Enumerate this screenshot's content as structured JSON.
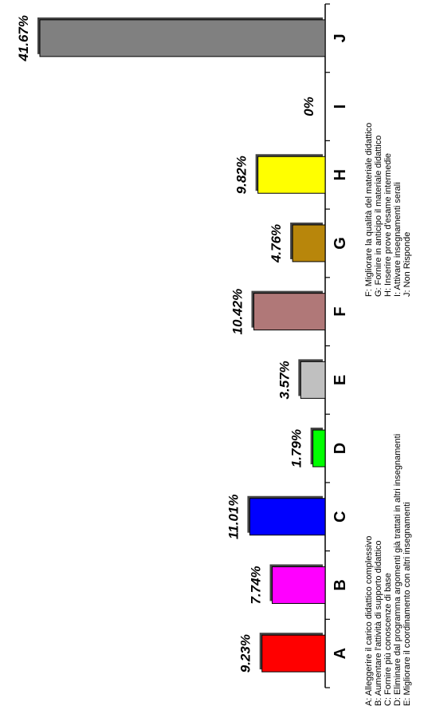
{
  "chart_data": {
    "type": "bar",
    "orientation": "horizontal-rotated",
    "categories": [
      "A",
      "B",
      "C",
      "D",
      "E",
      "F",
      "G",
      "H",
      "I",
      "J"
    ],
    "values": [
      9.23,
      7.74,
      11.01,
      1.79,
      3.57,
      10.42,
      4.76,
      9.82,
      0,
      41.67
    ],
    "value_labels": [
      "9.23%",
      "7.74%",
      "11.01%",
      "1.79%",
      "3.57%",
      "10.42%",
      "4.76%",
      "9.82%",
      "0%",
      "41.67%"
    ],
    "colors": [
      "#ff0000",
      "#ff00ff",
      "#0000ff",
      "#00ff00",
      "#c0c0c0",
      "#b07878",
      "#b8860b",
      "#ffff00",
      "#ffffff",
      "#808080"
    ],
    "title": "",
    "xlabel": "",
    "ylabel": "",
    "ylim": [
      0,
      45
    ],
    "grid": false,
    "legend_position": "right"
  },
  "legend_left": [
    "A: Alleggerire il carico didattico complessivo",
    "B: Aumentare l'attività  di supporto didattico",
    "C: Fornire più conoscenze di base",
    "D: Eliminare dal programma argomenti già  trattati in altri insegnamenti",
    "E: Migliorare il coordinamento con altri insegnamenti"
  ],
  "legend_right": [
    "F: Migliorare la qualità  del materiale didattico",
    "G: Fornire in anticipo il materiale didattico",
    "H: Inserire prove d'esame intermedie",
    "I: Attivare insegnamenti serali",
    "J: Non Risponde"
  ]
}
